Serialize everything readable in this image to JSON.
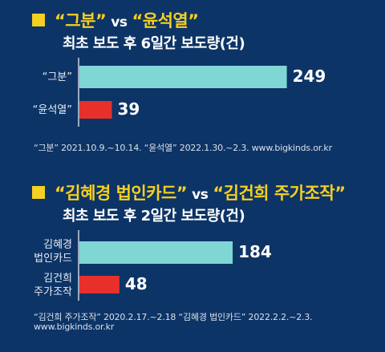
{
  "chart_data": [
    {
      "type": "bar",
      "orientation": "horizontal",
      "title_left": "“그분”",
      "title_vs": "vs",
      "title_right": "“윤석열”",
      "subtitle": "최초 보도 후 6일간 보도량(건)",
      "categories": [
        "“그분”",
        "“윤석열”"
      ],
      "values": [
        249,
        39
      ],
      "colors": [
        "#7fd6d5",
        "#e8302b"
      ],
      "xlim": [
        0,
        260
      ],
      "note": "“그분” 2021.10.9.~10.14. “윤석열” 2022.1.30.~2.3. www.bigkinds.or.kr"
    },
    {
      "type": "bar",
      "orientation": "horizontal",
      "title_left": "“김혜경 법인카드”",
      "title_vs": "vs",
      "title_right": "“김건희 주가조작”",
      "subtitle": "최초 보도 후 2일간 보도량(건)",
      "categories": [
        "김혜경\n법인카드",
        "김건희\n주가조작"
      ],
      "values": [
        184,
        48
      ],
      "colors": [
        "#7fd6d5",
        "#e8302b"
      ],
      "xlim": [
        0,
        260
      ],
      "note": [
        "“김건희 주가조작” 2020.2.17.~2.18 “김혜경 법인카드” 2022.2.2.~2.3.",
        "www.bigkinds.or.kr"
      ]
    }
  ],
  "colors": {
    "background": "#0d3466",
    "accent": "#f5d020",
    "axis": "#c9d3de"
  }
}
